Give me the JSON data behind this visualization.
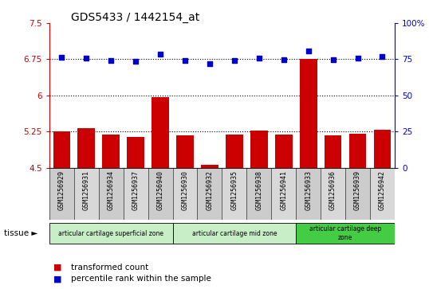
{
  "title": "GDS5433 / 1442154_at",
  "samples": [
    "GSM1256929",
    "GSM1256931",
    "GSM1256934",
    "GSM1256937",
    "GSM1256940",
    "GSM1256930",
    "GSM1256932",
    "GSM1256935",
    "GSM1256938",
    "GSM1256941",
    "GSM1256933",
    "GSM1256936",
    "GSM1256939",
    "GSM1256942"
  ],
  "bar_values": [
    5.25,
    5.32,
    5.18,
    5.14,
    5.97,
    5.17,
    4.56,
    5.18,
    5.27,
    5.19,
    6.75,
    5.17,
    5.2,
    5.29
  ],
  "dot_values_left": [
    6.79,
    6.78,
    6.72,
    6.71,
    6.85,
    6.73,
    6.66,
    6.73,
    6.77,
    6.74,
    6.93,
    6.74,
    6.78,
    6.8
  ],
  "bar_color": "#cc0000",
  "dot_color": "#0000cc",
  "ylim_left": [
    4.5,
    7.5
  ],
  "ylim_right": [
    0,
    100
  ],
  "yticks_left": [
    4.5,
    5.25,
    6.0,
    6.75,
    7.5
  ],
  "ytick_labels_left": [
    "4.5",
    "5.25",
    "6",
    "6.75",
    "7.5"
  ],
  "yticks_right": [
    0,
    25,
    50,
    75,
    100
  ],
  "ytick_labels_right": [
    "0",
    "25",
    "50",
    "75",
    "100%"
  ],
  "hlines": [
    5.25,
    6.0,
    6.75
  ],
  "groups": [
    {
      "label": "articular cartilage superficial zone",
      "start": 0,
      "end": 4,
      "color": "#c8eec8"
    },
    {
      "label": "articular cartilage mid zone",
      "start": 5,
      "end": 9,
      "color": "#c8eec8"
    },
    {
      "label": "articular cartilage deep\nzone",
      "start": 10,
      "end": 13,
      "color": "#44cc44"
    }
  ],
  "tissue_label": "tissue",
  "legend_bar": "transformed count",
  "legend_dot": "percentile rank within the sample",
  "plot_bg": "#ffffff",
  "xtick_bg_odd": "#d8d8d8",
  "xtick_bg_even": "#e8e8e8"
}
